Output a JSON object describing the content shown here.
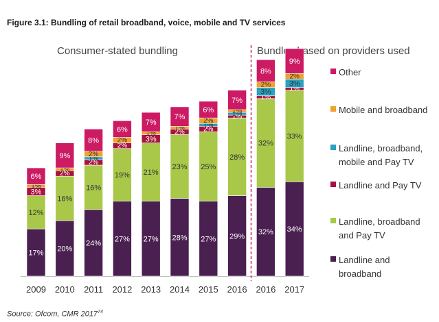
{
  "figure_title": "Figure 3.1: Bundling of retail broadband, voice, mobile and TV services",
  "source": {
    "text": "Source: Ofcom, CMR 2017",
    "footnote": "74"
  },
  "group_labels": {
    "left": "Consumer-stated bundling",
    "right": "Bundles based on providers used"
  },
  "colors": {
    "landline_broadband": "#4a2050",
    "landline_broadband_paytv": "#a9c84a",
    "landline_paytv": "#a8123f",
    "landline_broadband_mobile_paytv": "#2aa1c0",
    "mobile_broadband": "#f0a12e",
    "other": "#cc1a63",
    "divider": "#c8144f"
  },
  "legend": [
    {
      "key": "other",
      "label": "Other"
    },
    {
      "key": "mobile_broadband",
      "label": "Mobile and broadband"
    },
    {
      "key": "landline_broadband_mobile_paytv",
      "label": "Landline, broadband, mobile and Pay TV"
    },
    {
      "key": "landline_paytv",
      "label": "Landline and Pay TV"
    },
    {
      "key": "landline_broadband_paytv",
      "label": "Landline, broadband and Pay TV"
    },
    {
      "key": "landline_broadband",
      "label": "Landline and broadband"
    }
  ],
  "chart_data": {
    "type": "bar",
    "stacked": true,
    "categories": [
      "2009",
      "2010",
      "2011",
      "2012",
      "2013",
      "2014",
      "2015",
      "2016",
      "2016",
      "2017"
    ],
    "ylim": [
      0,
      80
    ],
    "series": [
      {
        "key": "landline_broadband",
        "name": "Landline and broadband",
        "values": [
          17,
          20,
          24,
          27,
          27,
          28,
          27,
          29,
          32,
          34
        ]
      },
      {
        "key": "landline_broadband_paytv",
        "name": "Landline, broadband and Pay TV",
        "values": [
          12,
          16,
          16,
          19,
          21,
          23,
          25,
          28,
          32,
          33
        ]
      },
      {
        "key": "landline_paytv",
        "name": "Landline and Pay TV",
        "values": [
          3,
          2,
          2,
          2,
          3,
          2,
          2,
          1,
          1,
          1
        ]
      },
      {
        "key": "landline_broadband_mobile_paytv",
        "name": "Landline, broadband, mobile and Pay TV",
        "values": [
          0,
          0,
          1,
          0,
          0,
          0,
          1,
          1,
          3,
          3
        ]
      },
      {
        "key": "mobile_broadband",
        "name": "Mobile and broadband",
        "values": [
          1,
          1,
          2,
          2,
          1,
          1,
          2,
          1,
          2,
          2
        ]
      },
      {
        "key": "other",
        "name": "Other",
        "values": [
          6,
          9,
          8,
          6,
          7,
          7,
          6,
          7,
          8,
          9
        ]
      }
    ],
    "data_labels": [
      [
        "17%",
        "12%",
        "3%",
        "",
        "1%",
        "6%"
      ],
      [
        "20%",
        "16%",
        "2%",
        "",
        "1%",
        "9%"
      ],
      [
        "24%",
        "16%",
        "2%",
        "1%",
        "2%",
        "8%"
      ],
      [
        "27%",
        "19%",
        "2%",
        "",
        "2%",
        "6%"
      ],
      [
        "27%",
        "21%",
        "3%",
        "",
        "1%",
        "7%"
      ],
      [
        "28%",
        "23%",
        "2%",
        "",
        "1%",
        "7%"
      ],
      [
        "27%",
        "25%",
        "2%",
        "1%",
        "2%",
        "6%"
      ],
      [
        "29%",
        "28%",
        "1%",
        "1%",
        "1%",
        "7%"
      ],
      [
        "32%",
        "32%",
        "1%",
        "3%",
        "2%",
        "8%"
      ],
      [
        "34%",
        "33%",
        "1%",
        "3%",
        "2%",
        "9%"
      ]
    ],
    "divider_after_index": 7
  }
}
